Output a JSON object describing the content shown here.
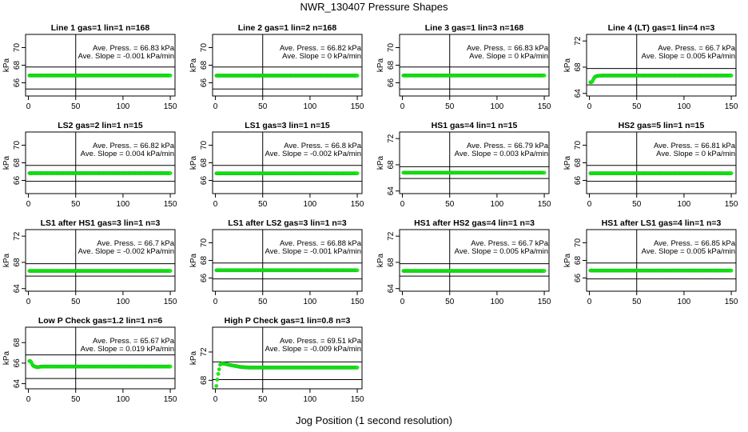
{
  "figure": {
    "title": "NWR_130407  Pressure Shapes",
    "xlabel": "Jog Position (1 second resolution)"
  },
  "chart_data": [
    {
      "type": "scatter",
      "title": "Line 1 gas=1 lin=1 n=168",
      "ylabel": "kPa",
      "xlim": [
        -3,
        155
      ],
      "ylim": [
        64.5,
        71.5
      ],
      "yticks": [
        66,
        68,
        70
      ],
      "xticks": [
        0,
        50,
        100,
        150
      ],
      "hlines": [
        65.3,
        67.8
      ],
      "vline": 50,
      "annotation": [
        "Ave. Press. = 66.83  kPa",
        "Ave. Slope =  -0.001  kPa/min"
      ],
      "x": [
        1,
        150
      ],
      "y": [
        66.83,
        66.83
      ],
      "series_color": "#00ff00"
    },
    {
      "type": "scatter",
      "title": "Line 2 gas=1 lin=2 n=168",
      "ylabel": "kPa",
      "xlim": [
        -3,
        155
      ],
      "ylim": [
        64.5,
        71.5
      ],
      "yticks": [
        66,
        68,
        70
      ],
      "xticks": [
        0,
        50,
        100,
        150
      ],
      "hlines": [
        65.3,
        67.8
      ],
      "vline": 50,
      "annotation": [
        "Ave. Press. = 66.82  kPa",
        "Ave. Slope = 0  kPa/min"
      ],
      "x": [
        1,
        150
      ],
      "y": [
        66.82,
        66.82
      ],
      "series_color": "#00ff00"
    },
    {
      "type": "scatter",
      "title": "Line 3 gas=1 lin=3 n=168",
      "ylabel": "kPa",
      "xlim": [
        -3,
        155
      ],
      "ylim": [
        64.5,
        71.5
      ],
      "yticks": [
        66,
        68,
        70
      ],
      "xticks": [
        0,
        50,
        100,
        150
      ],
      "hlines": [
        65.3,
        67.8
      ],
      "vline": 50,
      "annotation": [
        "Ave. Press. = 66.83  kPa",
        "Ave. Slope = 0  kPa/min"
      ],
      "x": [
        1,
        150
      ],
      "y": [
        66.83,
        66.83
      ],
      "series_color": "#00ff00"
    },
    {
      "type": "scatter",
      "title": "Line 4 (LT) gas=1 lin=4 n=3",
      "ylabel": "kPa",
      "xlim": [
        -3,
        155
      ],
      "ylim": [
        63.6,
        73
      ],
      "yticks": [
        64,
        68,
        72
      ],
      "xticks": [
        0,
        50,
        100,
        150
      ],
      "hlines": [
        65.3,
        67.8
      ],
      "vline": 50,
      "annotation": [
        "Ave. Press. = 66.7  kPa",
        "Ave. Slope = 0.005  kPa/min"
      ],
      "x": [
        1,
        2,
        3,
        4,
        5,
        6,
        8,
        10,
        15,
        150
      ],
      "y": [
        65.7,
        65.7,
        65.8,
        66.1,
        66.35,
        66.55,
        66.65,
        66.7,
        66.72,
        66.72
      ],
      "series_color": "#00ff00"
    },
    {
      "type": "scatter",
      "title": "LS2 gas=2 lin=1 n=15",
      "ylabel": "kPa",
      "xlim": [
        -3,
        155
      ],
      "ylim": [
        64.5,
        71.5
      ],
      "yticks": [
        66,
        68,
        70
      ],
      "xticks": [
        0,
        50,
        100,
        150
      ],
      "hlines": [
        65.9,
        67.7
      ],
      "vline": 50,
      "annotation": [
        "Ave. Press. = 66.82  kPa",
        "Ave. Slope = 0.004  kPa/min"
      ],
      "x": [
        1,
        150
      ],
      "y": [
        66.82,
        66.82
      ],
      "series_color": "#00ff00"
    },
    {
      "type": "scatter",
      "title": "LS1 gas=3 lin=1 n=15",
      "ylabel": "kPa",
      "xlim": [
        -3,
        155
      ],
      "ylim": [
        64.5,
        71.5
      ],
      "yticks": [
        66,
        68,
        70
      ],
      "xticks": [
        0,
        50,
        100,
        150
      ],
      "hlines": [
        65.9,
        67.7
      ],
      "vline": 50,
      "annotation": [
        "Ave. Press. = 66.8  kPa",
        "Ave. Slope = -0.002  kPa/min"
      ],
      "x": [
        1,
        150
      ],
      "y": [
        66.8,
        66.8
      ],
      "series_color": "#00ff00"
    },
    {
      "type": "scatter",
      "title": "HS1 gas=4 lin=1 n=15",
      "ylabel": "kPa",
      "xlim": [
        -3,
        155
      ],
      "ylim": [
        63.6,
        73
      ],
      "yticks": [
        64,
        68,
        72
      ],
      "xticks": [
        0,
        50,
        100,
        150
      ],
      "hlines": [
        65.9,
        67.7
      ],
      "vline": 50,
      "annotation": [
        "Ave. Press. = 66.79  kPa",
        "Ave. Slope = 0.003  kPa/min"
      ],
      "x": [
        1,
        150
      ],
      "y": [
        66.79,
        66.79
      ],
      "series_color": "#00ff00"
    },
    {
      "type": "scatter",
      "title": "HS2 gas=5 lin=1 n=15",
      "ylabel": "kPa",
      "xlim": [
        -3,
        155
      ],
      "ylim": [
        64.5,
        71.5
      ],
      "yticks": [
        66,
        68,
        70
      ],
      "xticks": [
        0,
        50,
        100,
        150
      ],
      "hlines": [
        65.9,
        67.7
      ],
      "vline": 50,
      "annotation": [
        "Ave. Press. = 66.81  kPa",
        "Ave. Slope = 0  kPa/min"
      ],
      "x": [
        1,
        150
      ],
      "y": [
        66.81,
        66.81
      ],
      "series_color": "#00ff00"
    },
    {
      "type": "scatter",
      "title": "LS1 after HS1 gas=3 lin=1 n=3",
      "ylabel": "kPa",
      "xlim": [
        -3,
        155
      ],
      "ylim": [
        63.6,
        73
      ],
      "yticks": [
        64,
        68,
        72
      ],
      "xticks": [
        0,
        50,
        100,
        150
      ],
      "hlines": [
        65.9,
        67.8
      ],
      "vline": 50,
      "annotation": [
        "Ave. Press. = 66.7  kPa",
        "Ave. Slope = -0.002  kPa/min"
      ],
      "x": [
        1,
        150
      ],
      "y": [
        66.7,
        66.7
      ],
      "series_color": "#00ff00"
    },
    {
      "type": "scatter",
      "title": "LS1 after LS2 gas=3 lin=1 n=3",
      "ylabel": "kPa",
      "xlim": [
        -3,
        155
      ],
      "ylim": [
        64.5,
        71.5
      ],
      "yticks": [
        66,
        68,
        70
      ],
      "xticks": [
        0,
        50,
        100,
        150
      ],
      "hlines": [
        65.9,
        67.7
      ],
      "vline": 50,
      "annotation": [
        "Ave. Press. = 66.88  kPa",
        "Ave. Slope = -0.001  kPa/min"
      ],
      "x": [
        1,
        150
      ],
      "y": [
        66.88,
        66.88
      ],
      "series_color": "#00ff00"
    },
    {
      "type": "scatter",
      "title": "HS1 after HS2 gas=4 lin=1 n=3",
      "ylabel": "kPa",
      "xlim": [
        -3,
        155
      ],
      "ylim": [
        63.6,
        73
      ],
      "yticks": [
        64,
        68,
        72
      ],
      "xticks": [
        0,
        50,
        100,
        150
      ],
      "hlines": [
        65.9,
        67.8
      ],
      "vline": 50,
      "annotation": [
        "Ave. Press. = 66.7  kPa",
        "Ave. Slope = 0.005  kPa/min"
      ],
      "x": [
        1,
        150
      ],
      "y": [
        66.7,
        66.7
      ],
      "series_color": "#00ff00"
    },
    {
      "type": "scatter",
      "title": "HS1 after LS1 gas=4 lin=1 n=3",
      "ylabel": "kPa",
      "xlim": [
        -3,
        155
      ],
      "ylim": [
        64.5,
        71.5
      ],
      "yticks": [
        66,
        68,
        70
      ],
      "xticks": [
        0,
        50,
        100,
        150
      ],
      "hlines": [
        65.9,
        67.7
      ],
      "vline": 50,
      "annotation": [
        "Ave. Press. = 66.85  kPa",
        "Ave. Slope = 0.005  kPa/min"
      ],
      "x": [
        1,
        150
      ],
      "y": [
        66.85,
        66.85
      ],
      "series_color": "#00ff00"
    },
    {
      "type": "scatter",
      "title": "Low P Check gas=1.2 lin=1 n=6",
      "ylabel": "kPa",
      "xlim": [
        -3,
        155
      ],
      "ylim": [
        63.5,
        69.5
      ],
      "yticks": [
        64,
        66,
        68
      ],
      "xticks": [
        0,
        50,
        100,
        150
      ],
      "hlines": [
        64.5,
        66.8
      ],
      "vline": 50,
      "annotation": [
        "Ave. Press. = 65.67  kPa",
        "Ave. Slope = 0.019  kPa/min"
      ],
      "x": [
        1,
        2,
        3,
        4,
        5,
        6,
        7,
        8,
        9,
        10,
        12,
        15,
        150
      ],
      "y": [
        66.2,
        66.2,
        66.1,
        65.9,
        65.75,
        65.7,
        65.65,
        65.65,
        65.6,
        65.6,
        65.65,
        65.67,
        65.67
      ],
      "series_color": "#00ff00"
    },
    {
      "type": "scatter",
      "title": "High P Check gas=1 lin=0.8 n=3",
      "ylabel": "kPa",
      "xlim": [
        -3,
        155
      ],
      "ylim": [
        66.8,
        75.5
      ],
      "yticks": [
        68,
        72
      ],
      "xticks": [
        0,
        50,
        100,
        150
      ],
      "hlines": [
        68.1,
        70.6
      ],
      "vline": 50,
      "annotation": [
        "Ave. Press. = 69.51  kPa",
        "Ave. Slope = -0.009  kPa/min"
      ],
      "x": [
        1,
        2,
        3,
        5,
        7,
        9,
        11,
        14,
        18,
        22,
        26,
        30,
        35,
        40,
        150
      ],
      "y": [
        67.2,
        68.1,
        68.9,
        70.2,
        70.4,
        70.35,
        70.3,
        70.2,
        70.1,
        70.0,
        69.9,
        69.85,
        69.8,
        69.8,
        69.8
      ],
      "series_color": "#00ff00"
    }
  ]
}
